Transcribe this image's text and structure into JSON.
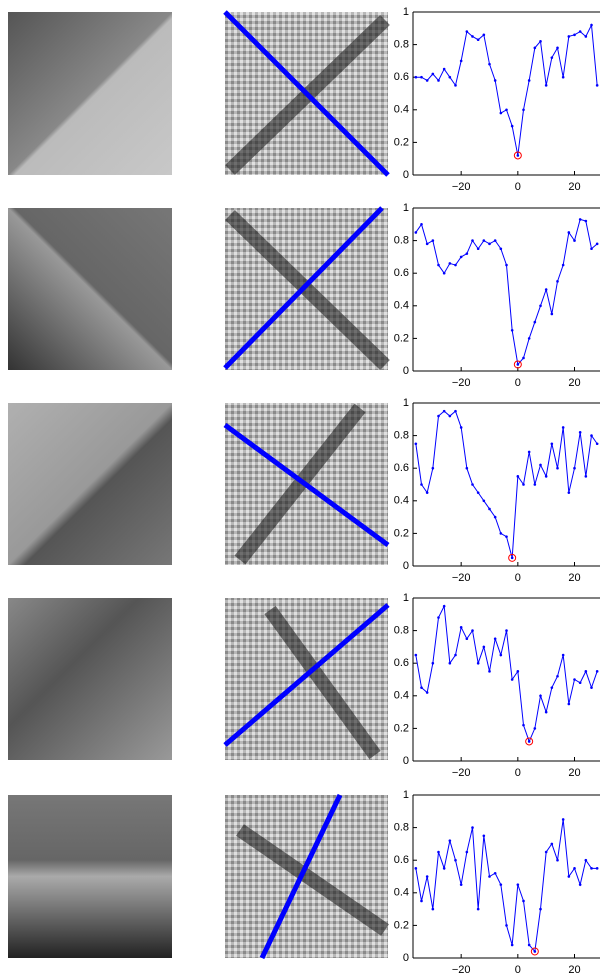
{
  "chart_data": [
    {
      "type": "line",
      "x": [
        -36,
        -34,
        -32,
        -30,
        -28,
        -26,
        -24,
        -22,
        -20,
        -18,
        -16,
        -14,
        -12,
        -10,
        -8,
        -6,
        -4,
        -2,
        0,
        2,
        4,
        6,
        8,
        10,
        12,
        14,
        16,
        18,
        20,
        22,
        24,
        26,
        28
      ],
      "series": [
        {
          "color": "#0000ff",
          "values": [
            0.6,
            0.6,
            0.58,
            0.62,
            0.58,
            0.65,
            0.6,
            0.55,
            0.7,
            0.88,
            0.85,
            0.83,
            0.86,
            0.68,
            0.58,
            0.38,
            0.4,
            0.3,
            0.12,
            0.4,
            0.58,
            0.78,
            0.82,
            0.55,
            0.72,
            0.78,
            0.6,
            0.85,
            0.86,
            0.88,
            0.85,
            0.92,
            0.55
          ]
        }
      ],
      "xlim": [
        -37,
        29
      ],
      "ylim": [
        0,
        1
      ],
      "xticks": [
        {
          "value": -20,
          "label": "−20"
        },
        0,
        20
      ],
      "yticks": [
        0,
        0.2,
        0.4,
        0.6,
        0.8,
        1
      ]
    },
    {
      "type": "line",
      "x": [
        -36,
        -34,
        -32,
        -30,
        -28,
        -26,
        -24,
        -22,
        -20,
        -18,
        -16,
        -14,
        -12,
        -10,
        -8,
        -6,
        -4,
        -2,
        0,
        2,
        4,
        6,
        8,
        10,
        12,
        14,
        16,
        18,
        20,
        22,
        24,
        26,
        28
      ],
      "series": [
        {
          "color": "#0000ff",
          "values": [
            0.85,
            0.9,
            0.78,
            0.8,
            0.65,
            0.6,
            0.66,
            0.65,
            0.7,
            0.72,
            0.8,
            0.75,
            0.8,
            0.78,
            0.8,
            0.75,
            0.65,
            0.25,
            0.04,
            0.08,
            0.2,
            0.3,
            0.4,
            0.5,
            0.35,
            0.55,
            0.65,
            0.85,
            0.8,
            0.93,
            0.92,
            0.75,
            0.78
          ]
        }
      ],
      "xlim": [
        -37,
        29
      ],
      "ylim": [
        0,
        1
      ],
      "xticks": [
        {
          "value": -20,
          "label": "−20"
        },
        0,
        20
      ],
      "yticks": [
        0,
        0.2,
        0.4,
        0.6,
        0.8,
        1
      ]
    },
    {
      "type": "line",
      "x": [
        -36,
        -34,
        -32,
        -30,
        -28,
        -26,
        -24,
        -22,
        -20,
        -18,
        -16,
        -14,
        -12,
        -10,
        -8,
        -6,
        -4,
        -2,
        0,
        2,
        4,
        6,
        8,
        10,
        12,
        14,
        16,
        18,
        20,
        22,
        24,
        26,
        28
      ],
      "series": [
        {
          "color": "#0000ff",
          "values": [
            0.75,
            0.5,
            0.45,
            0.6,
            0.92,
            0.95,
            0.92,
            0.95,
            0.85,
            0.6,
            0.5,
            0.45,
            0.4,
            0.35,
            0.3,
            0.2,
            0.18,
            0.05,
            0.55,
            0.5,
            0.7,
            0.5,
            0.62,
            0.55,
            0.75,
            0.6,
            0.85,
            0.45,
            0.6,
            0.82,
            0.55,
            0.8,
            0.75
          ]
        }
      ],
      "xlim": [
        -37,
        29
      ],
      "ylim": [
        0,
        1
      ],
      "xticks": [
        {
          "value": -20,
          "label": "−20"
        },
        0,
        20
      ],
      "yticks": [
        0,
        0.2,
        0.4,
        0.6,
        0.8,
        1
      ]
    },
    {
      "type": "line",
      "x": [
        -36,
        -34,
        -32,
        -30,
        -28,
        -26,
        -24,
        -22,
        -20,
        -18,
        -16,
        -14,
        -12,
        -10,
        -8,
        -6,
        -4,
        -2,
        0,
        2,
        4,
        6,
        8,
        10,
        12,
        14,
        16,
        18,
        20,
        22,
        24,
        26,
        28
      ],
      "series": [
        {
          "color": "#0000ff",
          "values": [
            0.65,
            0.45,
            0.42,
            0.6,
            0.88,
            0.95,
            0.6,
            0.65,
            0.82,
            0.75,
            0.8,
            0.6,
            0.7,
            0.55,
            0.75,
            0.65,
            0.8,
            0.5,
            0.55,
            0.22,
            0.12,
            0.2,
            0.4,
            0.3,
            0.45,
            0.52,
            0.65,
            0.35,
            0.5,
            0.48,
            0.55,
            0.45,
            0.55
          ]
        }
      ],
      "xlim": [
        -37,
        29
      ],
      "ylim": [
        0,
        1
      ],
      "xticks": [
        {
          "value": -20,
          "label": "−20"
        },
        0,
        20
      ],
      "yticks": [
        0,
        0.2,
        0.4,
        0.6,
        0.8,
        1
      ]
    },
    {
      "type": "line",
      "x": [
        -36,
        -34,
        -32,
        -30,
        -28,
        -26,
        -24,
        -22,
        -20,
        -18,
        -16,
        -14,
        -12,
        -10,
        -8,
        -6,
        -4,
        -2,
        0,
        2,
        4,
        6,
        8,
        10,
        12,
        14,
        16,
        18,
        20,
        22,
        24,
        26,
        28
      ],
      "series": [
        {
          "color": "#0000ff",
          "values": [
            0.55,
            0.35,
            0.5,
            0.3,
            0.65,
            0.55,
            0.72,
            0.6,
            0.45,
            0.65,
            0.8,
            0.3,
            0.75,
            0.5,
            0.52,
            0.45,
            0.2,
            0.08,
            0.45,
            0.35,
            0.08,
            0.04,
            0.3,
            0.65,
            0.7,
            0.6,
            0.85,
            0.5,
            0.55,
            0.45,
            0.6,
            0.55,
            0.55
          ]
        }
      ],
      "xlim": [
        -37,
        29
      ],
      "ylim": [
        0,
        1
      ],
      "xticks": [
        {
          "value": -20,
          "label": "−20"
        },
        0,
        20
      ],
      "yticks": [
        0,
        0.2,
        0.4,
        0.6,
        0.8,
        1
      ]
    }
  ]
}
